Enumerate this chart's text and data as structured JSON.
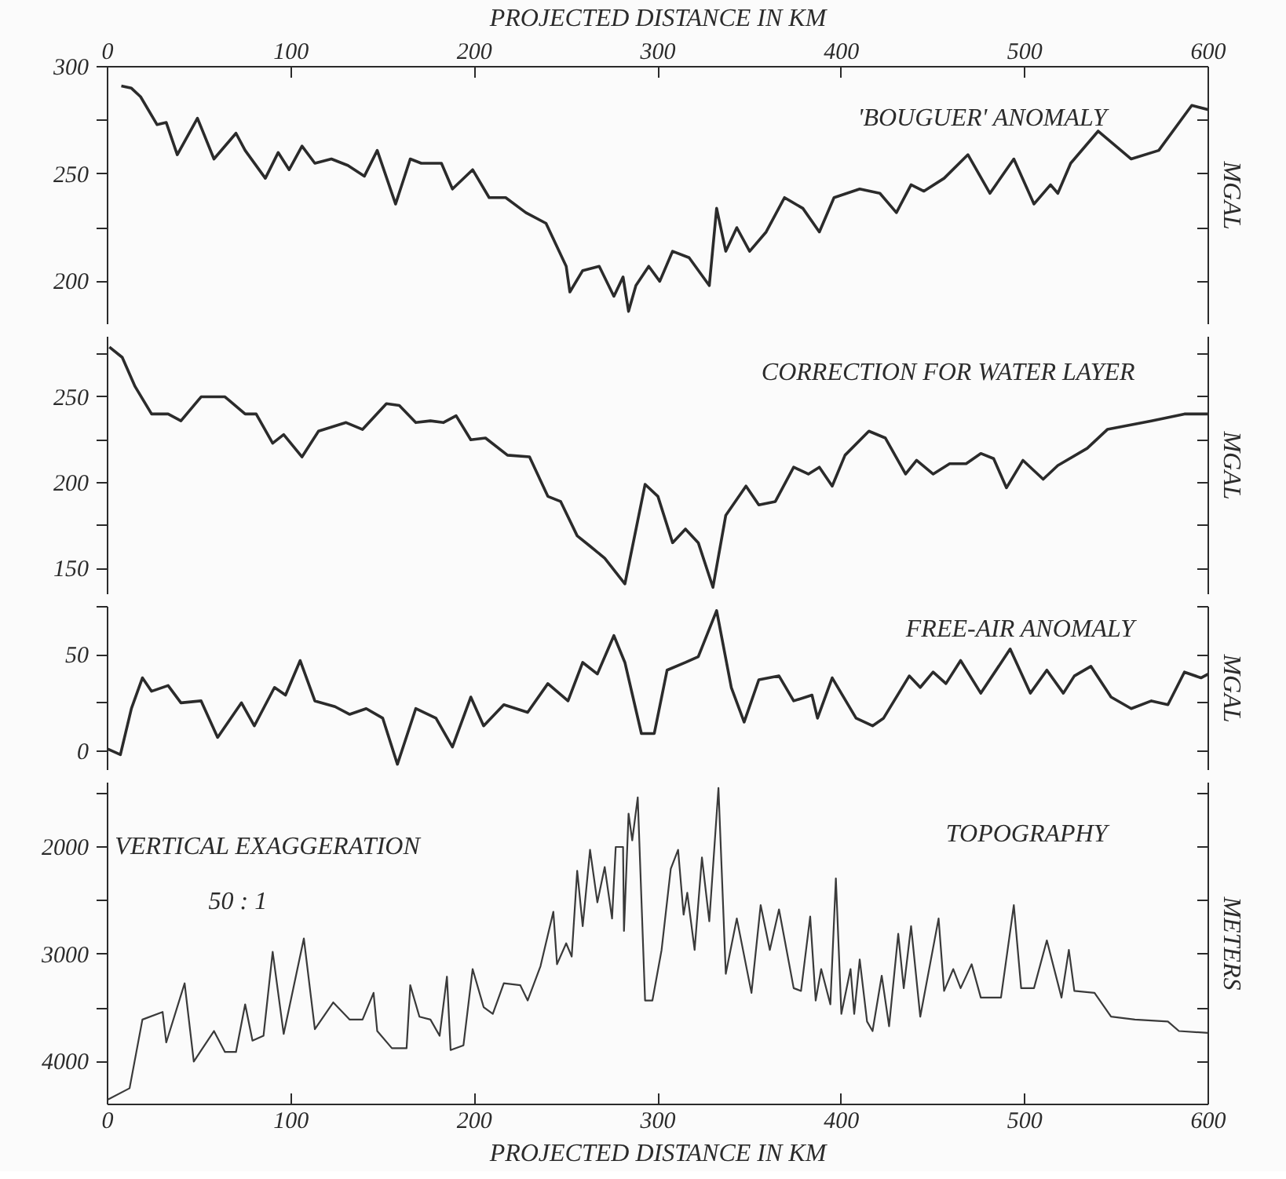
{
  "chart_data": [
    {
      "type": "line",
      "title": "'BOUGUER' ANOMALY",
      "ylabel": "MGAL",
      "xlim": [
        0,
        600
      ],
      "ylim": [
        180,
        300
      ],
      "x2lim": [
        0,
        600
      ],
      "x2label": "PROJECTED DISTANCE IN KM",
      "x2ticks": [
        {
          "value": 0,
          "label": "0"
        },
        100,
        200,
        300,
        400,
        500,
        600
      ],
      "yticks": [
        200,
        {
          "value": 225,
          "label": null
        },
        250,
        {
          "value": 275,
          "label": null
        },
        300
      ],
      "tick_labels": "y",
      "color": "#2b2b2b",
      "x": [
        7.5,
        13,
        18,
        27,
        32,
        38,
        49,
        58,
        70,
        75,
        86,
        93,
        99,
        106,
        113,
        122,
        131,
        140,
        147,
        157,
        165,
        171,
        182,
        188,
        199,
        208,
        217,
        228,
        239,
        250,
        252,
        259,
        268,
        276,
        281,
        284,
        288,
        295,
        301,
        308,
        317,
        328,
        332,
        337,
        343,
        350,
        359,
        369,
        379,
        388,
        396,
        410,
        421,
        430,
        438,
        445,
        456,
        469,
        481,
        494,
        505,
        514,
        518,
        525,
        540,
        558,
        573,
        591,
        600
      ],
      "values": [
        291,
        290,
        286,
        273,
        274,
        259,
        276,
        257,
        269,
        261,
        248,
        260,
        252,
        263,
        255,
        257,
        254,
        249,
        261,
        236,
        257,
        255,
        255,
        243,
        252,
        239,
        239,
        232,
        227,
        207,
        195,
        205,
        207,
        193,
        202,
        186,
        198,
        207,
        200,
        214,
        211,
        198,
        234,
        214,
        225,
        214,
        223,
        239,
        234,
        223,
        239,
        243,
        241,
        232,
        245,
        242,
        248,
        259,
        241,
        257,
        236,
        245,
        241,
        255,
        270,
        257,
        261,
        282,
        280
      ]
    },
    {
      "type": "line",
      "title": "CORRECTION FOR WATER LAYER",
      "ylabel": "MGAL",
      "xlim": [
        0,
        600
      ],
      "ylim": [
        135,
        285
      ],
      "yticks": [
        150,
        {
          "value": 175,
          "label": null
        },
        200,
        {
          "value": 225,
          "label": null
        },
        250,
        {
          "value": 275,
          "label": null
        }
      ],
      "tick_labels": "y",
      "color": "#2b2b2b",
      "x": [
        1,
        8,
        15,
        24,
        33,
        40,
        51,
        64,
        75,
        81,
        90,
        96,
        106,
        115,
        130,
        139,
        152,
        159,
        168,
        176,
        183,
        190,
        198,
        206,
        218,
        230,
        240,
        247,
        256,
        263,
        271,
        282,
        293,
        300,
        308,
        315,
        322,
        330,
        337,
        348,
        355,
        364,
        374,
        382,
        388,
        395,
        402,
        415,
        424,
        435,
        441,
        450,
        459,
        468,
        476,
        483,
        490,
        499,
        510,
        518,
        534,
        545,
        569,
        587,
        600
      ],
      "values": [
        279,
        273,
        256,
        240,
        240,
        236,
        250,
        250,
        240,
        240,
        223,
        228,
        215,
        230,
        235,
        231,
        246,
        245,
        235,
        236,
        235,
        239,
        225,
        226,
        216,
        215,
        192,
        189,
        169,
        163,
        156,
        141,
        199,
        192,
        165,
        173,
        165,
        139,
        181,
        198,
        187,
        189,
        209,
        205,
        209,
        198,
        216,
        230,
        226,
        205,
        213,
        205,
        211,
        211,
        217,
        214,
        197,
        213,
        202,
        210,
        220,
        231,
        236,
        240,
        240
      ]
    },
    {
      "type": "line",
      "title": "FREE-AIR ANOMALY",
      "ylabel": "MGAL",
      "xlim": [
        0,
        600
      ],
      "ylim": [
        -10,
        75
      ],
      "yticks": [
        0,
        {
          "value": 25,
          "label": null
        },
        50,
        {
          "value": 75,
          "label": null
        }
      ],
      "tick_labels": "y",
      "color": "#2b2b2b",
      "x": [
        0,
        7,
        13,
        19,
        24,
        33,
        40,
        51,
        60,
        73,
        80,
        91,
        97,
        105,
        113,
        124,
        132,
        141,
        150,
        158,
        168,
        179,
        188,
        198,
        205,
        216,
        229,
        240,
        251,
        259,
        267,
        276,
        282,
        291,
        298,
        305,
        315,
        322,
        332,
        340,
        347,
        355,
        366,
        374,
        384,
        387,
        395,
        408,
        417,
        423,
        437,
        443,
        450,
        457,
        465,
        476,
        492,
        503,
        512,
        521,
        527,
        536,
        547,
        558,
        569,
        578,
        587,
        596,
        600
      ],
      "values": [
        1,
        -2,
        22,
        38,
        31,
        34,
        25,
        26,
        7,
        25,
        13,
        33,
        29,
        47,
        26,
        23,
        19,
        22,
        17,
        -7,
        22,
        17,
        2,
        28,
        13,
        24,
        20,
        35,
        26,
        46,
        40,
        60,
        46,
        9,
        9,
        42,
        46,
        49,
        73,
        33,
        15,
        37,
        39,
        26,
        29,
        17,
        38,
        17,
        13,
        17,
        39,
        33,
        41,
        35,
        47,
        30,
        53,
        30,
        42,
        30,
        39,
        44,
        28,
        22,
        26,
        24,
        41,
        38,
        40
      ]
    },
    {
      "type": "line",
      "title": "TOPOGRAPHY",
      "ylabel": "METERS",
      "xlabel": "PROJECTED DISTANCE IN KM",
      "annotations": [
        "VERTICAL EXAGGERATION",
        "50 : 1"
      ],
      "xlim": [
        0,
        600
      ],
      "ylim": [
        4400,
        1400
      ],
      "xticks": [
        0,
        100,
        200,
        300,
        400,
        500,
        600
      ],
      "yticks": [
        {
          "value": 1500,
          "label": null
        },
        2000,
        {
          "value": 2500,
          "label": null
        },
        3000,
        {
          "value": 3500,
          "label": null
        },
        4000
      ],
      "color": "#3a3a3a",
      "x": [
        0,
        12,
        19,
        30,
        32,
        42,
        47,
        58,
        64,
        70,
        75,
        79,
        85,
        90,
        96,
        107,
        113,
        123,
        132,
        139,
        145,
        147,
        155,
        163,
        165,
        170,
        176,
        181,
        185,
        187,
        194,
        199,
        205,
        210,
        216,
        225,
        229,
        236,
        243,
        245,
        250,
        253,
        256,
        259,
        263,
        267,
        271,
        275,
        277,
        281,
        281.5,
        284,
        286,
        289,
        293,
        297,
        302,
        307,
        311,
        314,
        316,
        320,
        324,
        328,
        333,
        337,
        343,
        351,
        356,
        361,
        366,
        374,
        378,
        383,
        386,
        389,
        394,
        397,
        400,
        405,
        407,
        410,
        414,
        417,
        422,
        426,
        431,
        434,
        438,
        443,
        453,
        456,
        461,
        465,
        471,
        476,
        487,
        494,
        498,
        505,
        512,
        520,
        524,
        527,
        538,
        547,
        560,
        578,
        584,
        600
      ],
      "values": [
        4356,
        4249,
        3609,
        3538,
        3822,
        3271,
        4000,
        3716,
        3911,
        3911,
        3467,
        3805,
        3760,
        2978,
        3743,
        2853,
        3698,
        3449,
        3609,
        3609,
        3360,
        3716,
        3876,
        3876,
        3289,
        3582,
        3609,
        3760,
        3209,
        3893,
        3849,
        3138,
        3493,
        3556,
        3271,
        3289,
        3431,
        3111,
        2604,
        3093,
        2898,
        3022,
        2222,
        2738,
        2027,
        2516,
        2187,
        2667,
        2000,
        2000,
        2782,
        1689,
        1938,
        1538,
        3431,
        3431,
        2960,
        2204,
        2027,
        2631,
        2427,
        2960,
        2098,
        2693,
        1450,
        3182,
        2667,
        3360,
        2542,
        2960,
        2582,
        3316,
        3342,
        2649,
        3431,
        3138,
        3467,
        2293,
        3556,
        3138,
        3556,
        3049,
        3627,
        3716,
        3200,
        3671,
        2809,
        3316,
        2738,
        3582,
        2667,
        3342,
        3138,
        3316,
        3093,
        3404,
        3404,
        2542,
        3316,
        3316,
        2871,
        3404,
        2960,
        3342,
        3360,
        3582,
        3609,
        3627,
        3716,
        3733
      ]
    }
  ]
}
